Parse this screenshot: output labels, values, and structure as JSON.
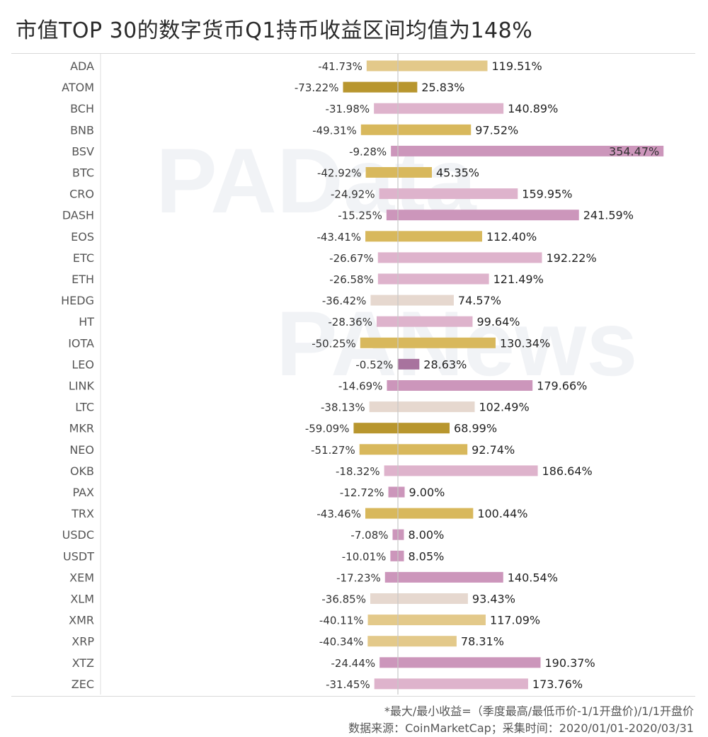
{
  "page": {
    "title": "市值TOP 30的数字货币Q1持币收益区间均值为148%",
    "footnote_line1": "*最大/最小收益=（季度最高/最低币价-1/1开盘价)/1/1开盘价",
    "footnote_line2": "数据来源：CoinMarketCap；采集时间：2020/01/01-2020/03/31",
    "watermark1": "PAData",
    "watermark2": "PANews"
  },
  "colors": {
    "gold_light": "#e3c98a",
    "gold_mid": "#d8b85c",
    "gold_dark": "#b8962e",
    "beige": "#e6d8cf",
    "pink_light": "#deb3cc",
    "pink_mid": "#cc96bb",
    "pink_dark": "#a8739e",
    "zero_line": "#c8c8c8"
  },
  "chart_data": {
    "type": "bar",
    "orientation": "horizontal-diverging",
    "title": "市值TOP 30的数字货币Q1持币收益区间均值为148%",
    "categories": [
      "ADA",
      "ATOM",
      "BCH",
      "BNB",
      "BSV",
      "BTC",
      "CRO",
      "DASH",
      "EOS",
      "ETC",
      "ETH",
      "HEDG",
      "HT",
      "IOTA",
      "LEO",
      "LINK",
      "LTC",
      "MKR",
      "NEO",
      "OKB",
      "PAX",
      "TRX",
      "USDC",
      "USDT",
      "XEM",
      "XLM",
      "XMR",
      "XRP",
      "XTZ",
      "ZEC"
    ],
    "series": [
      {
        "values": [
          -41.73,
          -73.22,
          -31.98,
          -49.31,
          -9.28,
          -42.92,
          -24.92,
          -15.25,
          -43.41,
          -26.67,
          -26.58,
          -36.42,
          -28.36,
          -50.25,
          -0.52,
          -14.69,
          -38.13,
          -59.09,
          -51.27,
          -18.32,
          -12.72,
          -43.46,
          -7.08,
          -10.01,
          -17.23,
          -36.85,
          -40.11,
          -40.34,
          -24.44,
          -31.45
        ],
        "labels": [
          "-41.73%",
          "-73.22%",
          "-31.98%",
          "-49.31%",
          "-9.28%",
          "-42.92%",
          "-24.92%",
          "-15.25%",
          "-43.41%",
          "-26.67%",
          "-26.58%",
          "-36.42%",
          "-28.36%",
          "-50.25%",
          "-0.52%",
          "-14.69%",
          "-38.13%",
          "-59.09%",
          "-51.27%",
          "-18.32%",
          "-12.72%",
          "-43.46%",
          "-7.08%",
          "-10.01%",
          "-17.23%",
          "-36.85%",
          "-40.11%",
          "-40.34%",
          "-24.44%",
          "-31.45%"
        ]
      },
      {
        "values": [
          119.51,
          25.83,
          140.89,
          97.52,
          354.47,
          45.35,
          159.95,
          241.59,
          112.4,
          192.22,
          121.49,
          74.57,
          99.64,
          130.34,
          28.63,
          179.66,
          102.49,
          68.99,
          92.74,
          186.64,
          9.0,
          100.44,
          8.0,
          8.05,
          140.54,
          93.43,
          117.09,
          78.31,
          190.37,
          173.76
        ],
        "labels": [
          "119.51%",
          "25.83%",
          "140.89%",
          "97.52%",
          "354.47%",
          "45.35%",
          "159.95%",
          "241.59%",
          "112.40%",
          "192.22%",
          "121.49%",
          "74.57%",
          "99.64%",
          "130.34%",
          "28.63%",
          "179.66%",
          "102.49%",
          "68.99%",
          "92.74%",
          "186.64%",
          "9.00%",
          "100.44%",
          "8.00%",
          "8.05%",
          "140.54%",
          "93.43%",
          "117.09%",
          "78.31%",
          "190.37%",
          "173.76%"
        ]
      }
    ],
    "bar_colors": [
      "gold_light",
      "gold_dark",
      "pink_light",
      "gold_mid",
      "pink_mid",
      "gold_mid",
      "pink_light",
      "pink_mid",
      "gold_mid",
      "pink_light",
      "pink_light",
      "beige",
      "pink_light",
      "gold_mid",
      "pink_dark",
      "pink_mid",
      "beige",
      "gold_dark",
      "gold_mid",
      "pink_light",
      "pink_mid",
      "gold_mid",
      "pink_mid",
      "pink_mid",
      "pink_mid",
      "beige",
      "gold_light",
      "gold_light",
      "pink_mid",
      "pink_light"
    ],
    "xlim": [
      -100,
      360
    ],
    "grid": false,
    "legend": "none"
  }
}
